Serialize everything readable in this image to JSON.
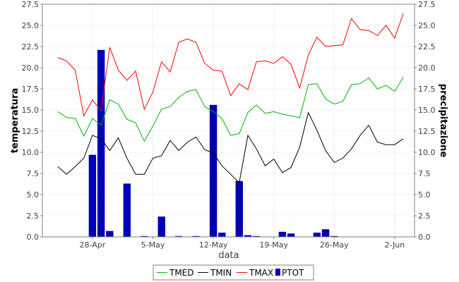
{
  "chart_data": {
    "type": "line",
    "xlabel": "data",
    "ylabel_left": "temperatura",
    "ylabel_right": "precipitazione",
    "ylim": [
      0,
      27.5
    ],
    "y_ticks": [
      "0.0",
      "2.5",
      "5.0",
      "7.5",
      "10.0",
      "12.5",
      "15.0",
      "17.5",
      "20.0",
      "22.5",
      "25.0",
      "27.5"
    ],
    "x_ticks": [
      "28-Apr",
      "5-May",
      "12-May",
      "19-May",
      "26-May",
      "2-Jun"
    ],
    "x_tick_days": [
      5,
      12,
      19,
      26,
      33,
      40
    ],
    "x_days": [
      1,
      2,
      3,
      4,
      5,
      6,
      7,
      8,
      9,
      10,
      11,
      12,
      13,
      14,
      15,
      16,
      17,
      18,
      19,
      20,
      21,
      22,
      23,
      24,
      25,
      26,
      27,
      28,
      29,
      30,
      31,
      32,
      33,
      34,
      35,
      36,
      37,
      38,
      39,
      40,
      41
    ],
    "x_range": [
      -0.8,
      42.3
    ],
    "legend_position": "bottom",
    "series": [
      {
        "name": "TMED",
        "color": "#00b400",
        "type": "line",
        "values": [
          14.8,
          14.1,
          14.0,
          11.9,
          14.0,
          13.2,
          16.2,
          15.7,
          13.9,
          13.5,
          11.3,
          13.1,
          15.1,
          15.4,
          16.5,
          17.2,
          17.4,
          15.4,
          14.8,
          14.0,
          12.0,
          12.2,
          14.7,
          15.6,
          14.6,
          14.8,
          14.5,
          14.3,
          14.1,
          18.0,
          18.1,
          16.3,
          15.7,
          16.0,
          18.0,
          18.1,
          18.8,
          17.5,
          17.9,
          17.2,
          18.9
        ]
      },
      {
        "name": "TMIN",
        "color": "#000000",
        "type": "line",
        "values": [
          8.3,
          7.4,
          8.3,
          9.3,
          12.0,
          11.6,
          10.2,
          11.7,
          9.3,
          7.4,
          7.4,
          9.3,
          9.6,
          11.4,
          10.2,
          11.2,
          11.8,
          10.3,
          9.9,
          8.4,
          7.4,
          6.4,
          12.0,
          10.4,
          8.4,
          9.2,
          7.6,
          8.2,
          10.6,
          14.7,
          12.6,
          10.2,
          8.8,
          9.3,
          10.4,
          12.0,
          13.2,
          11.2,
          10.9,
          10.9,
          11.6
        ]
      },
      {
        "name": "TMAX",
        "color": "#ff0000",
        "type": "line",
        "values": [
          21.2,
          20.8,
          19.7,
          14.3,
          16.2,
          14.9,
          22.4,
          19.7,
          18.5,
          19.6,
          15.1,
          17.1,
          20.7,
          19.5,
          23.0,
          23.4,
          23.0,
          20.5,
          19.7,
          19.6,
          16.7,
          18.1,
          17.4,
          20.7,
          20.8,
          20.5,
          21.3,
          20.4,
          17.6,
          21.5,
          23.6,
          22.5,
          22.6,
          22.7,
          25.8,
          24.5,
          24.4,
          23.8,
          25.0,
          23.5,
          26.4
        ]
      },
      {
        "name": "PTOT",
        "color": "#0000b4",
        "type": "bar",
        "values": [
          0,
          0,
          0,
          0,
          9.7,
          22.1,
          0.7,
          0,
          6.3,
          0,
          0.1,
          0,
          2.4,
          0,
          0.1,
          0,
          0.1,
          0,
          15.6,
          0.5,
          0,
          6.6,
          0.2,
          0.1,
          0,
          0,
          0.6,
          0.4,
          0,
          0,
          0.5,
          0.9,
          0.1,
          0,
          0,
          0,
          0,
          0,
          0,
          0,
          0
        ]
      }
    ]
  }
}
